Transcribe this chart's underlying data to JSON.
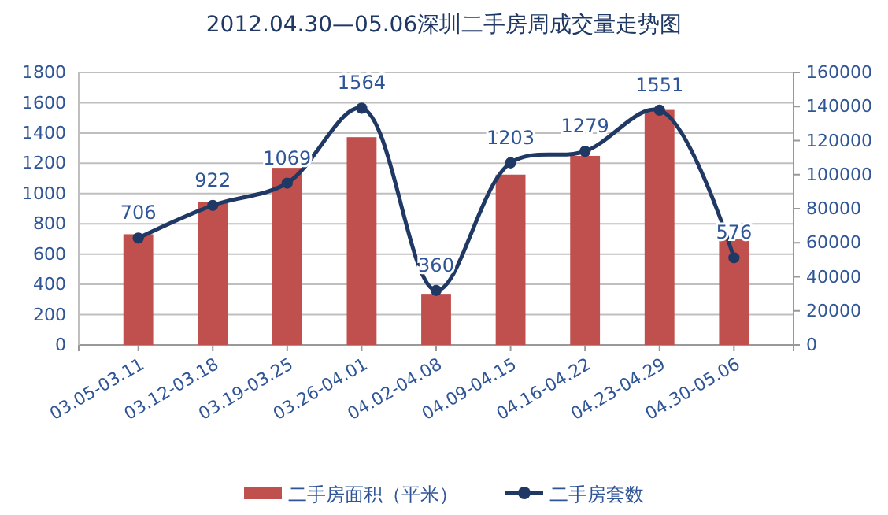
{
  "chart_data": {
    "type": "bar",
    "title": "2012.04.30—05.06深圳二手房周成交量走势图",
    "categories": [
      "03.05-03.11",
      "03.12-03.18",
      "03.19-03.25",
      "03.26-04.01",
      "04.02-04.08",
      "04.09-04.15",
      "04.16-04.22",
      "04.23-04.29",
      "04.30-05.06"
    ],
    "series": [
      {
        "name": "二手房面积（平米）",
        "axis": "y2",
        "color": "#c0504d",
        "values": [
          65000,
          84000,
          104000,
          122000,
          30000,
          100000,
          111000,
          138000,
          62000
        ]
      },
      {
        "name": "二手房套数",
        "type": "line",
        "axis": "y",
        "color": "#1f3864",
        "marker": "circle",
        "values": [
          706,
          922,
          1069,
          1564,
          360,
          1203,
          1279,
          1551,
          576
        ],
        "value_labels": [
          "706",
          "922",
          "1069",
          "1564",
          "360",
          "1203",
          "1279",
          "1551",
          "576"
        ]
      }
    ],
    "ylim": [
      0,
      1800
    ],
    "yticks": [
      0,
      200,
      400,
      600,
      800,
      1000,
      1200,
      1400,
      1600,
      1800
    ],
    "y2lim": [
      0,
      160000
    ],
    "y2ticks": [
      0,
      20000,
      40000,
      60000,
      80000,
      100000,
      120000,
      140000,
      160000
    ],
    "grid": "y",
    "legend": "bottom"
  }
}
